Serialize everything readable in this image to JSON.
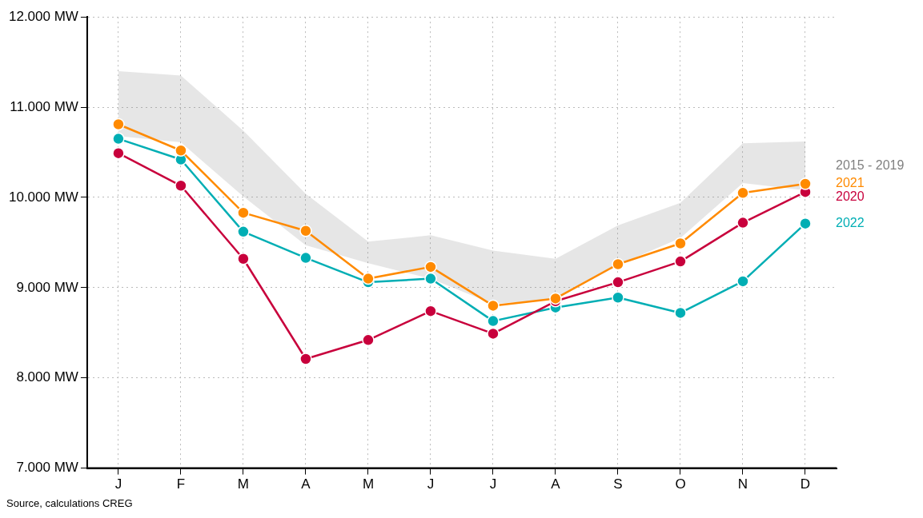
{
  "chart_data": {
    "type": "line",
    "categories": [
      "J",
      "F",
      "M",
      "A",
      "M",
      "J",
      "J",
      "A",
      "S",
      "O",
      "N",
      "D"
    ],
    "series": [
      {
        "name": "2015 - 2019",
        "type": "area",
        "color": "#808080",
        "values": [
          null,
          null,
          null,
          null,
          null,
          null,
          null,
          null,
          null,
          null,
          null,
          null
        ],
        "lower": [
          10680,
          10610,
          10010,
          9470,
          9270,
          9100,
          8820,
          8870,
          9250,
          9550,
          10160,
          10080
        ],
        "upper": [
          11400,
          11350,
          10740,
          10040,
          9510,
          9580,
          9410,
          9320,
          9690,
          9940,
          10600,
          10620
        ]
      },
      {
        "name": "2022",
        "color": "#00aeb4",
        "values": [
          10650,
          10420,
          9620,
          9330,
          9060,
          9100,
          8630,
          8780,
          8890,
          8720,
          9070,
          9710
        ]
      },
      {
        "name": "2020",
        "color": "#c8003c",
        "values": [
          10490,
          10130,
          9320,
          8210,
          8420,
          8740,
          8490,
          8850,
          9060,
          9290,
          9720,
          10060
        ]
      },
      {
        "name": "2021",
        "color": "#ff8a00",
        "values": [
          10810,
          10520,
          9830,
          9630,
          9100,
          9230,
          8800,
          8880,
          9260,
          9490,
          10050,
          10150
        ]
      }
    ],
    "ylim": [
      7000,
      12000
    ],
    "yticks": [
      {
        "value": 7000,
        "label": "7.000 MW"
      },
      {
        "value": 8000,
        "label": "8.000 MW"
      },
      {
        "value": 9000,
        "label": "9.000 MW"
      },
      {
        "value": 10000,
        "label": "10.000 MW"
      },
      {
        "value": 11000,
        "label": "11.000 MW"
      },
      {
        "value": 12000,
        "label": "12.000 MW"
      }
    ],
    "grid": true,
    "legend": false,
    "marker": "circle",
    "line_style": "solid",
    "annotations": [
      "Source, calculations CREG"
    ]
  }
}
